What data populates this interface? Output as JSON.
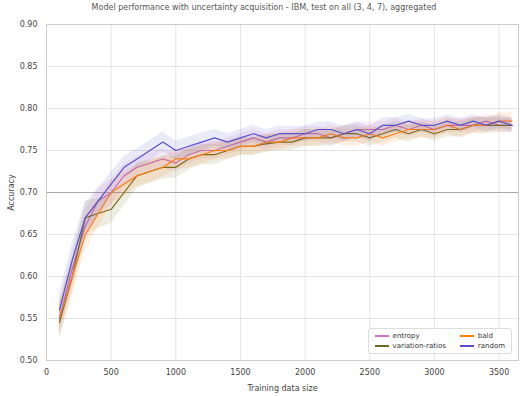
{
  "chart_data": {
    "type": "line",
    "title": "Model performance with uncertainty acquisition - IBM, test on all (3, 4, 7), aggregated",
    "x_label": "Training data size",
    "y_label": "Accuracy",
    "xlim": [
      0,
      3650
    ],
    "xticks": [
      0,
      500,
      1000,
      1500,
      2000,
      2500,
      3000,
      3500
    ],
    "ylim": [
      0.5,
      0.9
    ],
    "yticks": [
      {
        "value": 0.5,
        "label": "0.50"
      },
      0.55,
      {
        "value": 0.6,
        "label": "0.60"
      },
      0.65,
      {
        "value": 0.7,
        "label": "0.70"
      },
      0.75,
      {
        "value": 0.8,
        "label": "0.80"
      },
      0.85,
      {
        "value": 0.9,
        "label": "0.90"
      }
    ],
    "grid": true,
    "legend": "lower right",
    "hline": 0.7,
    "x": [
      100,
      200,
      300,
      400,
      500,
      600,
      700,
      800,
      900,
      1000,
      1100,
      1200,
      1300,
      1400,
      1500,
      1600,
      1700,
      1800,
      1900,
      2000,
      2100,
      2200,
      2300,
      2400,
      2500,
      2600,
      2700,
      2800,
      2900,
      3000,
      3100,
      3200,
      3300,
      3400,
      3500,
      3600
    ],
    "series": [
      {
        "name": "entropy",
        "color": "#d66fc7",
        "values": [
          0.55,
          0.61,
          0.66,
          0.69,
          0.7,
          0.72,
          0.73,
          0.735,
          0.74,
          0.735,
          0.745,
          0.75,
          0.75,
          0.755,
          0.76,
          0.765,
          0.76,
          0.765,
          0.765,
          0.77,
          0.77,
          0.765,
          0.77,
          0.775,
          0.775,
          0.775,
          0.78,
          0.775,
          0.78,
          0.775,
          0.78,
          0.78,
          0.78,
          0.785,
          0.78,
          0.78
        ],
        "error": [
          0.02,
          0.02,
          0.018,
          0.016,
          0.015,
          0.014,
          0.013,
          0.012,
          0.012,
          0.011,
          0.011,
          0.01,
          0.01,
          0.01,
          0.01,
          0.01,
          0.01,
          0.01,
          0.009,
          0.009,
          0.009,
          0.009,
          0.009,
          0.009,
          0.009,
          0.009,
          0.009,
          0.008,
          0.008,
          0.008,
          0.008,
          0.008,
          0.008,
          0.008,
          0.008,
          0.008
        ]
      },
      {
        "name": "variation-ratios",
        "color": "#6b6b1a",
        "values": [
          0.545,
          0.6,
          0.67,
          0.675,
          0.68,
          0.7,
          0.72,
          0.725,
          0.73,
          0.73,
          0.74,
          0.745,
          0.745,
          0.75,
          0.755,
          0.755,
          0.758,
          0.76,
          0.76,
          0.765,
          0.765,
          0.765,
          0.77,
          0.77,
          0.765,
          0.77,
          0.775,
          0.77,
          0.775,
          0.77,
          0.775,
          0.775,
          0.78,
          0.78,
          0.78,
          0.78
        ],
        "error": [
          0.02,
          0.02,
          0.02,
          0.018,
          0.017,
          0.016,
          0.015,
          0.014,
          0.014,
          0.013,
          0.013,
          0.012,
          0.012,
          0.011,
          0.011,
          0.011,
          0.01,
          0.01,
          0.01,
          0.01,
          0.01,
          0.01,
          0.01,
          0.01,
          0.01,
          0.01,
          0.01,
          0.01,
          0.009,
          0.009,
          0.009,
          0.009,
          0.009,
          0.009,
          0.009,
          0.009
        ]
      },
      {
        "name": "bald",
        "color": "#ff7f0e",
        "values": [
          0.55,
          0.6,
          0.65,
          0.675,
          0.7,
          0.71,
          0.72,
          0.725,
          0.73,
          0.74,
          0.74,
          0.745,
          0.75,
          0.75,
          0.755,
          0.755,
          0.76,
          0.76,
          0.765,
          0.765,
          0.765,
          0.77,
          0.765,
          0.765,
          0.77,
          0.765,
          0.77,
          0.775,
          0.775,
          0.775,
          0.78,
          0.775,
          0.78,
          0.78,
          0.785,
          0.785
        ],
        "error": [
          0.02,
          0.02,
          0.018,
          0.016,
          0.015,
          0.014,
          0.013,
          0.013,
          0.012,
          0.012,
          0.011,
          0.011,
          0.011,
          0.01,
          0.01,
          0.01,
          0.01,
          0.01,
          0.01,
          0.01,
          0.01,
          0.01,
          0.01,
          0.01,
          0.01,
          0.01,
          0.01,
          0.01,
          0.01,
          0.01,
          0.01,
          0.01,
          0.01,
          0.01,
          0.01,
          0.01
        ]
      },
      {
        "name": "random",
        "color": "#5a4fcf",
        "values": [
          0.56,
          0.62,
          0.67,
          0.69,
          0.71,
          0.73,
          0.74,
          0.75,
          0.76,
          0.75,
          0.755,
          0.76,
          0.765,
          0.76,
          0.765,
          0.77,
          0.765,
          0.77,
          0.77,
          0.77,
          0.775,
          0.775,
          0.77,
          0.775,
          0.77,
          0.78,
          0.78,
          0.785,
          0.78,
          0.78,
          0.785,
          0.78,
          0.785,
          0.78,
          0.785,
          0.78
        ],
        "error": [
          0.02,
          0.02,
          0.017,
          0.015,
          0.014,
          0.013,
          0.012,
          0.012,
          0.012,
          0.011,
          0.011,
          0.011,
          0.01,
          0.01,
          0.01,
          0.01,
          0.01,
          0.009,
          0.009,
          0.009,
          0.009,
          0.009,
          0.009,
          0.009,
          0.009,
          0.009,
          0.009,
          0.008,
          0.008,
          0.008,
          0.008,
          0.008,
          0.008,
          0.008,
          0.008,
          0.008
        ]
      }
    ]
  }
}
